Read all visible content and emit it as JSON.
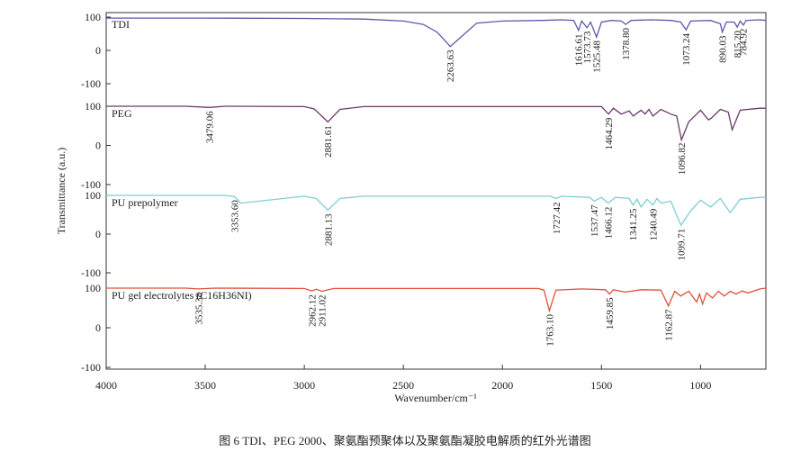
{
  "chart_data": {
    "type": "line",
    "xlabel": "Wavenumber/cm⁻¹",
    "ylabel": "Transmittance (a.u.)",
    "caption": "图 6  TDI、PEG 2000、聚氨酯预聚体以及聚氨酯凝胶电解质的红外光谱图",
    "xlim": [
      4000,
      670
    ],
    "xticks": [
      4000,
      3500,
      3000,
      2500,
      2000,
      1500,
      1000
    ],
    "series": [
      {
        "name": "TDI",
        "color": "#5a5aa8",
        "ylim": [
          -100,
          100
        ],
        "yticks": [
          100,
          0,
          -100
        ],
        "x": [
          4000,
          3500,
          3000,
          2700,
          2500,
          2400,
          2330,
          2263,
          2200,
          2130,
          2000,
          1800,
          1700,
          1640,
          1616,
          1600,
          1573,
          1555,
          1525,
          1500,
          1450,
          1400,
          1378,
          1350,
          1250,
          1150,
          1100,
          1073,
          1050,
          950,
          900,
          890,
          870,
          830,
          815,
          800,
          784,
          770,
          700,
          670
        ],
        "values": [
          97,
          97,
          96,
          94,
          88,
          78,
          55,
          12,
          45,
          82,
          88,
          90,
          92,
          90,
          60,
          88,
          68,
          85,
          40,
          85,
          90,
          88,
          78,
          90,
          92,
          90,
          85,
          62,
          88,
          90,
          80,
          55,
          85,
          85,
          70,
          88,
          76,
          90,
          92,
          90
        ],
        "peaks": [
          {
            "value": 2263.63,
            "label": "2263.63"
          },
          {
            "value": 1616.61,
            "label": "1616.61"
          },
          {
            "value": 1573.73,
            "label": "1573.73"
          },
          {
            "value": 1525.48,
            "label": "1525.48"
          },
          {
            "value": 1378.8,
            "label": "1378.80"
          },
          {
            "value": 1073.24,
            "label": "1073.24"
          },
          {
            "value": 890.03,
            "label": "890.03"
          },
          {
            "value": 815.2,
            "label": "815.20"
          },
          {
            "value": 784.92,
            "label": "784.92"
          }
        ]
      },
      {
        "name": "PEG",
        "color": "#6b3a6b",
        "ylim": [
          -100,
          100
        ],
        "yticks": [
          100,
          0,
          -100
        ],
        "x": [
          4000,
          3600,
          3479,
          3400,
          3000,
          2950,
          2881,
          2820,
          2700,
          1500,
          1464,
          1440,
          1400,
          1360,
          1340,
          1300,
          1280,
          1260,
          1240,
          1200,
          1150,
          1120,
          1096,
          1060,
          1000,
          960,
          945,
          900,
          860,
          840,
          800,
          700,
          670
        ],
        "values": [
          100,
          100,
          97,
          100,
          99,
          93,
          60,
          92,
          99,
          99,
          80,
          95,
          80,
          88,
          75,
          90,
          80,
          92,
          75,
          92,
          80,
          75,
          14,
          60,
          90,
          65,
          70,
          92,
          85,
          40,
          90,
          95,
          95
        ],
        "peaks": [
          {
            "value": 3479.06,
            "label": "3479.06"
          },
          {
            "value": 2881.61,
            "label": "2881.61"
          },
          {
            "value": 1464.29,
            "label": "1464.29"
          },
          {
            "value": 1096.82,
            "label": "1096.82"
          }
        ]
      },
      {
        "name": "PU prepolymer",
        "color": "#7ecfd6",
        "ylim": [
          -100,
          100
        ],
        "yticks": [
          100,
          0,
          -100
        ],
        "x": [
          4000,
          3400,
          3353,
          3320,
          3000,
          2940,
          2881,
          2820,
          2700,
          1760,
          1727,
          1700,
          1560,
          1537,
          1500,
          1466,
          1430,
          1360,
          1341,
          1320,
          1300,
          1270,
          1240,
          1220,
          1200,
          1150,
          1099,
          1050,
          1000,
          950,
          900,
          850,
          800,
          700,
          670
        ],
        "values": [
          100,
          100,
          97,
          80,
          98,
          92,
          62,
          92,
          98,
          98,
          92,
          98,
          95,
          85,
          95,
          80,
          95,
          92,
          75,
          90,
          70,
          90,
          75,
          92,
          80,
          85,
          23,
          60,
          88,
          70,
          92,
          55,
          90,
          95,
          95
        ],
        "peaks": [
          {
            "value": 3353.6,
            "label": "3353.60"
          },
          {
            "value": 2881.13,
            "label": "2881.13"
          },
          {
            "value": 1727.42,
            "label": "1727.42"
          },
          {
            "value": 1537.47,
            "label": "1537.47"
          },
          {
            "value": 1466.12,
            "label": "1466.12"
          },
          {
            "value": 1341.25,
            "label": "1341.25"
          },
          {
            "value": 1240.49,
            "label": "1240.49"
          },
          {
            "value": 1099.71,
            "label": "1099.71"
          }
        ]
      },
      {
        "name": "PU gel electrolytes (C16H36NI)",
        "color": "#e0503a",
        "ylim": [
          -100,
          100
        ],
        "yticks": [
          100,
          0,
          -100
        ],
        "x": [
          4000,
          3600,
          3535,
          3450,
          3000,
          2962,
          2940,
          2911,
          2850,
          1820,
          1790,
          1763,
          1730,
          1600,
          1480,
          1459,
          1440,
          1380,
          1300,
          1200,
          1162,
          1130,
          1100,
          1060,
          1020,
          1005,
          990,
          970,
          940,
          910,
          880,
          850,
          820,
          790,
          760,
          700,
          670
        ],
        "values": [
          100,
          100,
          98,
          100,
          99,
          93,
          97,
          92,
          99,
          99,
          95,
          43,
          95,
          98,
          96,
          85,
          96,
          90,
          96,
          95,
          55,
          92,
          80,
          92,
          65,
          85,
          60,
          88,
          75,
          92,
          80,
          92,
          85,
          93,
          88,
          98,
          100
        ],
        "peaks": [
          {
            "value": 3535.38,
            "label": "3535.38"
          },
          {
            "value": 2962.12,
            "label": "2962.12"
          },
          {
            "value": 2911.02,
            "label": "2911.02"
          },
          {
            "value": 1763.1,
            "label": "1763.10"
          },
          {
            "value": 1459.85,
            "label": "1459.85"
          },
          {
            "value": 1162.87,
            "label": "1162.87"
          }
        ]
      }
    ]
  }
}
